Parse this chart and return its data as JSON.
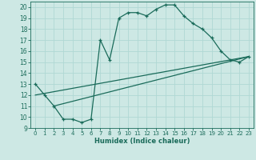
{
  "title": "",
  "xlabel": "Humidex (Indice chaleur)",
  "xlim": [
    -0.5,
    23.5
  ],
  "ylim": [
    9,
    20.5
  ],
  "yticks": [
    9,
    10,
    11,
    12,
    13,
    14,
    15,
    16,
    17,
    18,
    19,
    20
  ],
  "xticks": [
    0,
    1,
    2,
    3,
    4,
    5,
    6,
    7,
    8,
    9,
    10,
    11,
    12,
    13,
    14,
    15,
    16,
    17,
    18,
    19,
    20,
    21,
    22,
    23
  ],
  "bg_color": "#cde8e4",
  "grid_color": "#b0d8d4",
  "line_color": "#1a6b5a",
  "line1_x": [
    0,
    1,
    2,
    3,
    4,
    5,
    6,
    7,
    8,
    9,
    10,
    11,
    12,
    13,
    14,
    15,
    16,
    17,
    18,
    19,
    20,
    21,
    22,
    23
  ],
  "line1_y": [
    13,
    12,
    11,
    9.8,
    9.8,
    9.5,
    9.8,
    17.0,
    15.2,
    19.0,
    19.5,
    19.5,
    19.2,
    19.8,
    20.2,
    20.2,
    19.2,
    18.5,
    18.0,
    17.2,
    16.0,
    15.2,
    15.0,
    15.5
  ],
  "line2_x": [
    0,
    23
  ],
  "line2_y": [
    12.0,
    15.5
  ],
  "line3_x": [
    2,
    23
  ],
  "line3_y": [
    11.0,
    15.5
  ]
}
